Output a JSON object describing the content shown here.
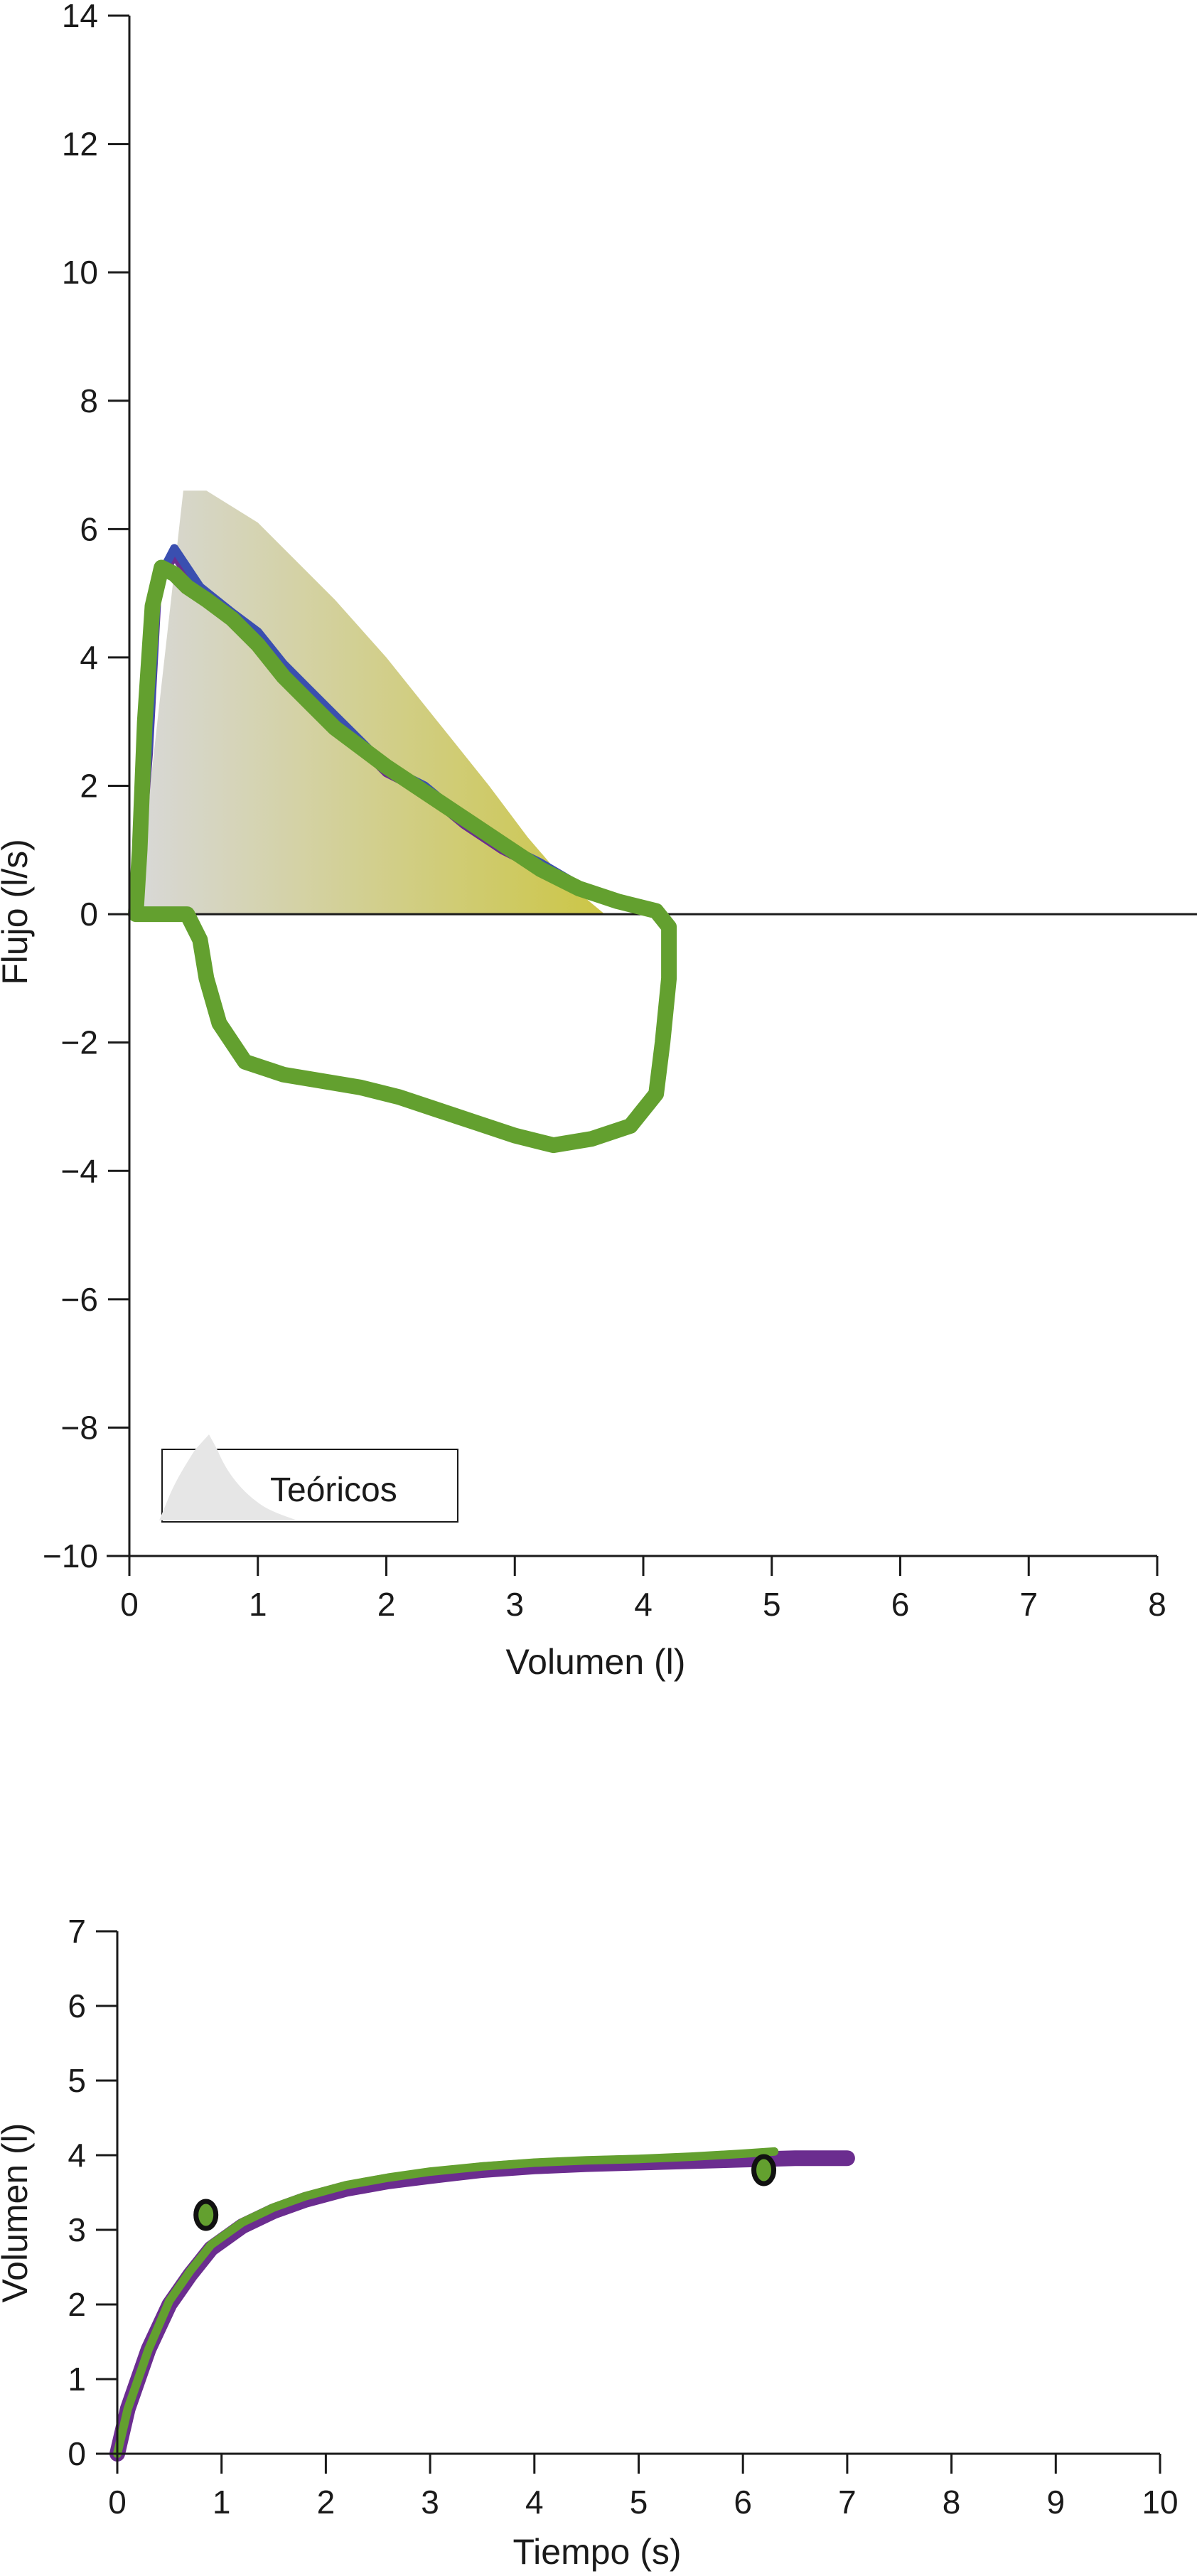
{
  "chart_data": [
    {
      "type": "line",
      "xlabel": "Volumen (l)",
      "ylabel": "Flujo (l/s)",
      "xlim": [
        0,
        8
      ],
      "ylim": [
        -10,
        14
      ],
      "x_ticks": [
        {
          "value": 0,
          "label": "0"
        },
        {
          "value": 1,
          "label": "1"
        },
        {
          "value": 2,
          "label": "2"
        },
        {
          "value": 3,
          "label": "3"
        },
        {
          "value": 4,
          "label": "4"
        },
        {
          "value": 5,
          "label": "5"
        },
        {
          "value": 6,
          "label": "6"
        },
        {
          "value": 7,
          "label": "7"
        },
        {
          "value": 8,
          "label": "8"
        }
      ],
      "y_ticks": [
        {
          "value": -10,
          "label": "−10"
        },
        {
          "value": -8,
          "label": "−8"
        },
        {
          "value": -6,
          "label": "−6"
        },
        {
          "value": -4,
          "label": "−4"
        },
        {
          "value": -2,
          "label": "−2"
        },
        {
          "value": 0,
          "label": "0"
        },
        {
          "value": 2,
          "label": "2"
        },
        {
          "value": 4,
          "label": "4"
        },
        {
          "value": 6,
          "label": "6"
        },
        {
          "value": 8,
          "label": "8"
        },
        {
          "value": 10,
          "label": "10"
        },
        {
          "value": 12,
          "label": "12"
        },
        {
          "value": 14,
          "label": "14"
        }
      ],
      "legend": {
        "label": "Teóricos",
        "placement": "bottom-left"
      },
      "reference_area": {
        "name": "Teóricos",
        "points": [
          [
            0.05,
            0
          ],
          [
            0.42,
            6.6
          ],
          [
            0.6,
            6.6
          ],
          [
            0.8,
            6.35
          ],
          [
            1.0,
            6.1
          ],
          [
            1.3,
            5.5
          ],
          [
            1.6,
            4.9
          ],
          [
            2.0,
            4.0
          ],
          [
            2.4,
            3.0
          ],
          [
            2.8,
            2.0
          ],
          [
            3.1,
            1.2
          ],
          [
            3.4,
            0.5
          ],
          [
            3.7,
            0
          ]
        ],
        "colors": [
          "#d6d6d6",
          "#c9c33c"
        ]
      },
      "series": [
        {
          "color": "#6b2d8f",
          "width_class": "medium",
          "points": [
            [
              0.05,
              0
            ],
            [
              0.15,
              2.5
            ],
            [
              0.22,
              5.1
            ],
            [
              0.35,
              5.6
            ],
            [
              0.55,
              5.0
            ],
            [
              0.8,
              4.6
            ],
            [
              1.0,
              4.3
            ],
            [
              1.2,
              3.8
            ],
            [
              1.4,
              3.4
            ],
            [
              1.6,
              3.0
            ],
            [
              1.8,
              2.6
            ],
            [
              2.0,
              2.2
            ],
            [
              2.3,
              1.9
            ],
            [
              2.6,
              1.4
            ],
            [
              2.9,
              1.0
            ],
            [
              3.2,
              0.7
            ],
            [
              3.5,
              0.4
            ],
            [
              3.8,
              0.15
            ],
            [
              4.15,
              0
            ]
          ]
        },
        {
          "color": "#3a4fb0",
          "width_class": "medium",
          "points": [
            [
              0.05,
              0
            ],
            [
              0.15,
              2.6
            ],
            [
              0.22,
              5.2
            ],
            [
              0.35,
              5.7
            ],
            [
              0.55,
              5.1
            ],
            [
              0.8,
              4.7
            ],
            [
              1.0,
              4.4
            ],
            [
              1.2,
              3.9
            ],
            [
              1.4,
              3.5
            ],
            [
              1.6,
              3.1
            ],
            [
              1.8,
              2.7
            ],
            [
              2.0,
              2.3
            ],
            [
              2.3,
              2.0
            ],
            [
              2.6,
              1.5
            ],
            [
              2.9,
              1.1
            ],
            [
              3.2,
              0.8
            ],
            [
              3.5,
              0.45
            ],
            [
              3.8,
              0.15
            ],
            [
              4.15,
              0
            ]
          ]
        },
        {
          "color": "#63a02f",
          "width_class": "thick",
          "points": [
            [
              0.05,
              0
            ],
            [
              0.08,
              1.0
            ],
            [
              0.12,
              3.0
            ],
            [
              0.18,
              4.8
            ],
            [
              0.25,
              5.4
            ],
            [
              0.35,
              5.3
            ],
            [
              0.45,
              5.1
            ],
            [
              0.6,
              4.9
            ],
            [
              0.8,
              4.6
            ],
            [
              1.0,
              4.2
            ],
            [
              1.2,
              3.7
            ],
            [
              1.4,
              3.3
            ],
            [
              1.6,
              2.9
            ],
            [
              1.8,
              2.6
            ],
            [
              2.0,
              2.3
            ],
            [
              2.3,
              1.9
            ],
            [
              2.6,
              1.5
            ],
            [
              2.9,
              1.1
            ],
            [
              3.2,
              0.7
            ],
            [
              3.5,
              0.4
            ],
            [
              3.8,
              0.2
            ],
            [
              4.1,
              0.05
            ],
            [
              4.2,
              -0.2
            ],
            [
              4.2,
              -1.0
            ],
            [
              4.15,
              -2.0
            ],
            [
              4.1,
              -2.8
            ],
            [
              3.9,
              -3.3
            ],
            [
              3.6,
              -3.5
            ],
            [
              3.3,
              -3.6
            ],
            [
              3.0,
              -3.45
            ],
            [
              2.7,
              -3.25
            ],
            [
              2.4,
              -3.05
            ],
            [
              2.1,
              -2.85
            ],
            [
              1.8,
              -2.7
            ],
            [
              1.5,
              -2.6
            ],
            [
              1.2,
              -2.5
            ],
            [
              0.9,
              -2.3
            ],
            [
              0.7,
              -1.7
            ],
            [
              0.6,
              -1.0
            ],
            [
              0.55,
              -0.4
            ],
            [
              0.45,
              0
            ],
            [
              0.05,
              0
            ]
          ]
        }
      ]
    },
    {
      "type": "line",
      "xlabel": "Tiempo (s)",
      "ylabel": "Volumen (l)",
      "xlim": [
        0,
        10
      ],
      "ylim": [
        0,
        7
      ],
      "x_ticks": [
        {
          "value": 0,
          "label": "0"
        },
        {
          "value": 1,
          "label": "1"
        },
        {
          "value": 2,
          "label": "2"
        },
        {
          "value": 3,
          "label": "3"
        },
        {
          "value": 4,
          "label": "4"
        },
        {
          "value": 5,
          "label": "5"
        },
        {
          "value": 6,
          "label": "6"
        },
        {
          "value": 7,
          "label": "7"
        },
        {
          "value": 8,
          "label": "8"
        },
        {
          "value": 9,
          "label": "9"
        },
        {
          "value": 10,
          "label": "10"
        }
      ],
      "y_ticks": [
        {
          "value": 0,
          "label": "0"
        },
        {
          "value": 1,
          "label": "1"
        },
        {
          "value": 2,
          "label": "2"
        },
        {
          "value": 3,
          "label": "3"
        },
        {
          "value": 4,
          "label": "4"
        },
        {
          "value": 5,
          "label": "5"
        },
        {
          "value": 6,
          "label": "6"
        },
        {
          "value": 7,
          "label": "7"
        }
      ],
      "series": [
        {
          "color": "#6b2d8f",
          "width_class": "thick",
          "points": [
            [
              0,
              0
            ],
            [
              0.1,
              0.6
            ],
            [
              0.3,
              1.4
            ],
            [
              0.5,
              2.0
            ],
            [
              0.7,
              2.4
            ],
            [
              0.9,
              2.75
            ],
            [
              1.2,
              3.05
            ],
            [
              1.5,
              3.25
            ],
            [
              1.8,
              3.4
            ],
            [
              2.2,
              3.55
            ],
            [
              2.6,
              3.65
            ],
            [
              3.0,
              3.72
            ],
            [
              3.5,
              3.8
            ],
            [
              4.0,
              3.85
            ],
            [
              4.5,
              3.88
            ],
            [
              5.0,
              3.9
            ],
            [
              5.5,
              3.92
            ],
            [
              6.0,
              3.94
            ],
            [
              6.5,
              3.96
            ],
            [
              7.0,
              3.96
            ]
          ]
        },
        {
          "color": "#63a02f",
          "width_class": "medium",
          "points": [
            [
              0,
              0
            ],
            [
              0.1,
              0.6
            ],
            [
              0.3,
              1.4
            ],
            [
              0.5,
              2.05
            ],
            [
              0.7,
              2.45
            ],
            [
              0.9,
              2.8
            ],
            [
              1.2,
              3.1
            ],
            [
              1.5,
              3.3
            ],
            [
              1.8,
              3.45
            ],
            [
              2.2,
              3.6
            ],
            [
              2.6,
              3.7
            ],
            [
              3.0,
              3.78
            ],
            [
              3.5,
              3.85
            ],
            [
              4.0,
              3.9
            ],
            [
              4.5,
              3.93
            ],
            [
              5.0,
              3.95
            ],
            [
              5.5,
              3.98
            ],
            [
              6.0,
              4.02
            ],
            [
              6.3,
              4.05
            ]
          ]
        }
      ],
      "markers": [
        {
          "x": 0.85,
          "y": 3.2,
          "edge_color": "#111111",
          "fill_color": "#63a02f"
        },
        {
          "x": 6.2,
          "y": 3.8,
          "edge_color": "#111111",
          "fill_color": "#63a02f"
        }
      ]
    }
  ]
}
